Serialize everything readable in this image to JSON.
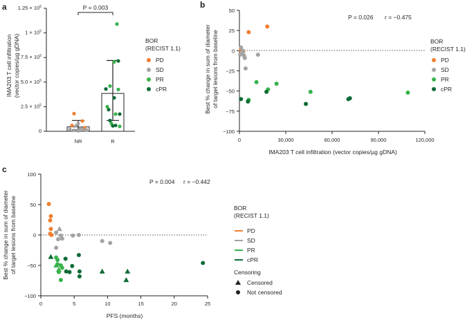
{
  "colors": {
    "PD": "#ef7f31",
    "SD": "#a3a3a3",
    "PR": "#36b34a",
    "cPR": "#0d6b36",
    "axis": "#231f20"
  },
  "legend": {
    "title_line1": "BOR",
    "title_line2": "(RECIST 1.1)",
    "items": [
      {
        "label": "PD",
        "color": "#ef7f31"
      },
      {
        "label": "SD",
        "color": "#a3a3a3"
      },
      {
        "label": "PR",
        "color": "#36b34a"
      },
      {
        "label": "cPR",
        "color": "#0d6b36"
      }
    ],
    "censoring_title": "Censoring",
    "censored_label": "Censored",
    "not_censored_label": "Not censored"
  },
  "chart_data": [
    {
      "panel": "a",
      "type": "bar",
      "ylabel_line1": "IMA203 T cell infiltration",
      "ylabel_line2": "(vector copies/µg gDNA)",
      "ylim": [
        0,
        125000
      ],
      "yticks": [
        0,
        25000,
        50000,
        75000,
        100000,
        125000
      ],
      "ytick_mantissa": [
        "",
        "2.5",
        "5.0",
        "7.5",
        "1",
        "1.25"
      ],
      "ytick_base": "0",
      "ytick_times": "× 10",
      "ytick_exp": "5",
      "categories": [
        "NR",
        "R"
      ],
      "bar_heights": [
        4500,
        38500
      ],
      "error_bars": [
        [
          1500,
          11000
        ],
        [
          11000,
          72000
        ]
      ],
      "significance": "P = 0.003",
      "points": [
        {
          "group": "NR",
          "bor": "PD",
          "y": 18000
        },
        {
          "group": "NR",
          "bor": "PD",
          "y": 10500
        },
        {
          "group": "NR",
          "bor": "PD",
          "y": 6000
        },
        {
          "group": "NR",
          "bor": "PD",
          "y": 3500
        },
        {
          "group": "NR",
          "bor": "SD",
          "y": 8000
        },
        {
          "group": "NR",
          "bor": "SD",
          "y": 5500
        },
        {
          "group": "NR",
          "bor": "SD",
          "y": 3000
        },
        {
          "group": "NR",
          "bor": "SD",
          "y": 2000
        },
        {
          "group": "NR",
          "bor": "SD",
          "y": 1500
        },
        {
          "group": "NR",
          "bor": "SD",
          "y": 1000
        },
        {
          "group": "NR",
          "bor": "SD",
          "y": 2500
        },
        {
          "group": "NR",
          "bor": "SD",
          "y": 500
        },
        {
          "group": "R",
          "bor": "PR",
          "y": 109000
        },
        {
          "group": "R",
          "bor": "PR",
          "y": 70500
        },
        {
          "group": "R",
          "bor": "PR",
          "y": 46000
        },
        {
          "group": "R",
          "bor": "PR",
          "y": 42500
        },
        {
          "group": "R",
          "bor": "PR",
          "y": 25000
        },
        {
          "group": "R",
          "bor": "PR",
          "y": 17500
        },
        {
          "group": "R",
          "bor": "PR",
          "y": 8000
        },
        {
          "group": "R",
          "bor": "PR",
          "y": 5000
        },
        {
          "group": "R",
          "bor": "cPR",
          "y": 71500
        },
        {
          "group": "R",
          "bor": "cPR",
          "y": 43000
        },
        {
          "group": "R",
          "bor": "cPR",
          "y": 34000
        },
        {
          "group": "R",
          "bor": "cPR",
          "y": 22000
        },
        {
          "group": "R",
          "bor": "cPR",
          "y": 17500
        },
        {
          "group": "R",
          "bor": "cPR",
          "y": 11000
        },
        {
          "group": "R",
          "bor": "cPR",
          "y": 6000
        },
        {
          "group": "R",
          "bor": "cPR",
          "y": 5500
        }
      ]
    },
    {
      "panel": "b",
      "type": "scatter",
      "xlabel": "IMA203 T cell infiltration (vector copies/µg gDNA)",
      "ylabel_line1": "Best % change in sum of diameter",
      "ylabel_line2": "of target lesions from baseline",
      "xlim": [
        0,
        120000
      ],
      "ylim": [
        -100,
        50
      ],
      "xticks": [
        0,
        30000,
        60000,
        90000,
        120000
      ],
      "xtick_labels": [
        "0",
        "30,000",
        "60,000",
        "90,000",
        "120,000"
      ],
      "yticks": [
        -100,
        -75,
        -50,
        -25,
        0,
        25,
        50
      ],
      "ytick_labels": [
        "−100",
        "−75",
        "−50",
        "−25",
        "0",
        "25",
        "50"
      ],
      "stat_p": "P = 0.026",
      "stat_r": "r = −0.475",
      "points": [
        {
          "x": 6000,
          "y": 23,
          "bor": "PD"
        },
        {
          "x": 18000,
          "y": 30,
          "bor": "PD"
        },
        {
          "x": 1000,
          "y": 1,
          "bor": "PD"
        },
        {
          "x": 2500,
          "y": -1,
          "bor": "PD"
        },
        {
          "x": 1000,
          "y": 4,
          "bor": "SD"
        },
        {
          "x": 2000,
          "y": -2,
          "bor": "SD"
        },
        {
          "x": 3000,
          "y": -6,
          "bor": "SD"
        },
        {
          "x": 3500,
          "y": -9,
          "bor": "SD"
        },
        {
          "x": 500,
          "y": -5,
          "bor": "SD"
        },
        {
          "x": 4000,
          "y": -22,
          "bor": "SD"
        },
        {
          "x": 12000,
          "y": -5,
          "bor": "SD"
        },
        {
          "x": 2200,
          "y": 0,
          "bor": "SD"
        },
        {
          "x": 11000,
          "y": -39,
          "bor": "PR"
        },
        {
          "x": 24000,
          "y": -41,
          "bor": "PR"
        },
        {
          "x": 18500,
          "y": -48,
          "bor": "PR"
        },
        {
          "x": 46000,
          "y": -51,
          "bor": "PR"
        },
        {
          "x": 109000,
          "y": -52,
          "bor": "PR"
        },
        {
          "x": 6000,
          "y": -61,
          "bor": "PR"
        },
        {
          "x": 17500,
          "y": -51,
          "bor": "cPR"
        },
        {
          "x": 43000,
          "y": -66,
          "bor": "cPR"
        },
        {
          "x": 71500,
          "y": -59,
          "bor": "cPR"
        },
        {
          "x": 70500,
          "y": -60,
          "bor": "cPR"
        },
        {
          "x": 5500,
          "y": -63,
          "bor": "cPR"
        },
        {
          "x": 1000,
          "y": -60,
          "bor": "cPR"
        }
      ]
    },
    {
      "panel": "c",
      "type": "scatter",
      "xlabel": "PFS (months)",
      "ylabel_line1": "Best % change in sum of diameter",
      "ylabel_line2": "of target lesions from baseline",
      "xlim": [
        0,
        25
      ],
      "ylim": [
        -100,
        100
      ],
      "xticks": [
        0,
        5,
        10,
        15,
        20,
        25
      ],
      "xtick_labels": [
        "0",
        "5",
        "10",
        "15",
        "20",
        "25"
      ],
      "yticks": [
        -100,
        -50,
        0,
        50,
        100
      ],
      "ytick_labels": [
        "−100",
        "−50",
        "0",
        "50",
        "100"
      ],
      "stat_p": "P = 0.004",
      "stat_r": "r = −0.442",
      "points": [
        {
          "x": 1.2,
          "y": 51,
          "bor": "PD",
          "censored": false
        },
        {
          "x": 1.5,
          "y": 31,
          "bor": "PD",
          "censored": false
        },
        {
          "x": 1.4,
          "y": 24,
          "bor": "PD",
          "censored": false
        },
        {
          "x": 1.5,
          "y": 10,
          "bor": "PD",
          "censored": false
        },
        {
          "x": 1.4,
          "y": 2,
          "bor": "PD",
          "censored": false
        },
        {
          "x": 1.6,
          "y": 0,
          "bor": "PD",
          "censored": false
        },
        {
          "x": 2.8,
          "y": 10,
          "bor": "SD",
          "censored": true
        },
        {
          "x": 2.3,
          "y": 4,
          "bor": "SD",
          "censored": false
        },
        {
          "x": 3.0,
          "y": -1,
          "bor": "SD",
          "censored": false
        },
        {
          "x": 3.2,
          "y": -6,
          "bor": "SD",
          "censored": false
        },
        {
          "x": 2.6,
          "y": -7,
          "bor": "SD",
          "censored": false
        },
        {
          "x": 2.3,
          "y": -21,
          "bor": "SD",
          "censored": false
        },
        {
          "x": 4.8,
          "y": -1,
          "bor": "SD",
          "censored": false
        },
        {
          "x": 5.7,
          "y": 0,
          "bor": "SD",
          "censored": false
        },
        {
          "x": 9.2,
          "y": -10,
          "bor": "SD",
          "censored": false
        },
        {
          "x": 10.4,
          "y": -13,
          "bor": "SD",
          "censored": false
        },
        {
          "x": 2.3,
          "y": -37,
          "bor": "PR",
          "censored": false
        },
        {
          "x": 2.5,
          "y": -41,
          "bor": "PR",
          "censored": false
        },
        {
          "x": 2.5,
          "y": -48,
          "bor": "PR",
          "censored": false
        },
        {
          "x": 3.0,
          "y": -50,
          "bor": "PR",
          "censored": false
        },
        {
          "x": 2.7,
          "y": -61,
          "bor": "PR",
          "censored": false
        },
        {
          "x": 3.2,
          "y": -54,
          "bor": "PR",
          "censored": false
        },
        {
          "x": 3.0,
          "y": -74,
          "bor": "PR",
          "censored": false
        },
        {
          "x": 2.3,
          "y": -50,
          "bor": "PR",
          "censored": true
        },
        {
          "x": 2.7,
          "y": -57,
          "bor": "PR",
          "censored": true
        },
        {
          "x": 1.5,
          "y": -36,
          "bor": "cPR",
          "censored": true
        },
        {
          "x": 3.7,
          "y": -39,
          "bor": "cPR",
          "censored": false
        },
        {
          "x": 4.7,
          "y": -51,
          "bor": "cPR",
          "censored": false
        },
        {
          "x": 5.7,
          "y": -33,
          "bor": "cPR",
          "censored": false
        },
        {
          "x": 3.8,
          "y": -60,
          "bor": "cPR",
          "censored": false
        },
        {
          "x": 4.3,
          "y": -61,
          "bor": "cPR",
          "censored": false
        },
        {
          "x": 5.8,
          "y": -60,
          "bor": "cPR",
          "censored": false
        },
        {
          "x": 5.8,
          "y": -68,
          "bor": "cPR",
          "censored": false
        },
        {
          "x": 9.2,
          "y": -60,
          "bor": "cPR",
          "censored": true
        },
        {
          "x": 13.0,
          "y": -60,
          "bor": "cPR",
          "censored": true
        },
        {
          "x": 12.8,
          "y": -74,
          "bor": "cPR",
          "censored": true
        },
        {
          "x": 24.3,
          "y": -46,
          "bor": "cPR",
          "censored": false
        }
      ]
    }
  ]
}
